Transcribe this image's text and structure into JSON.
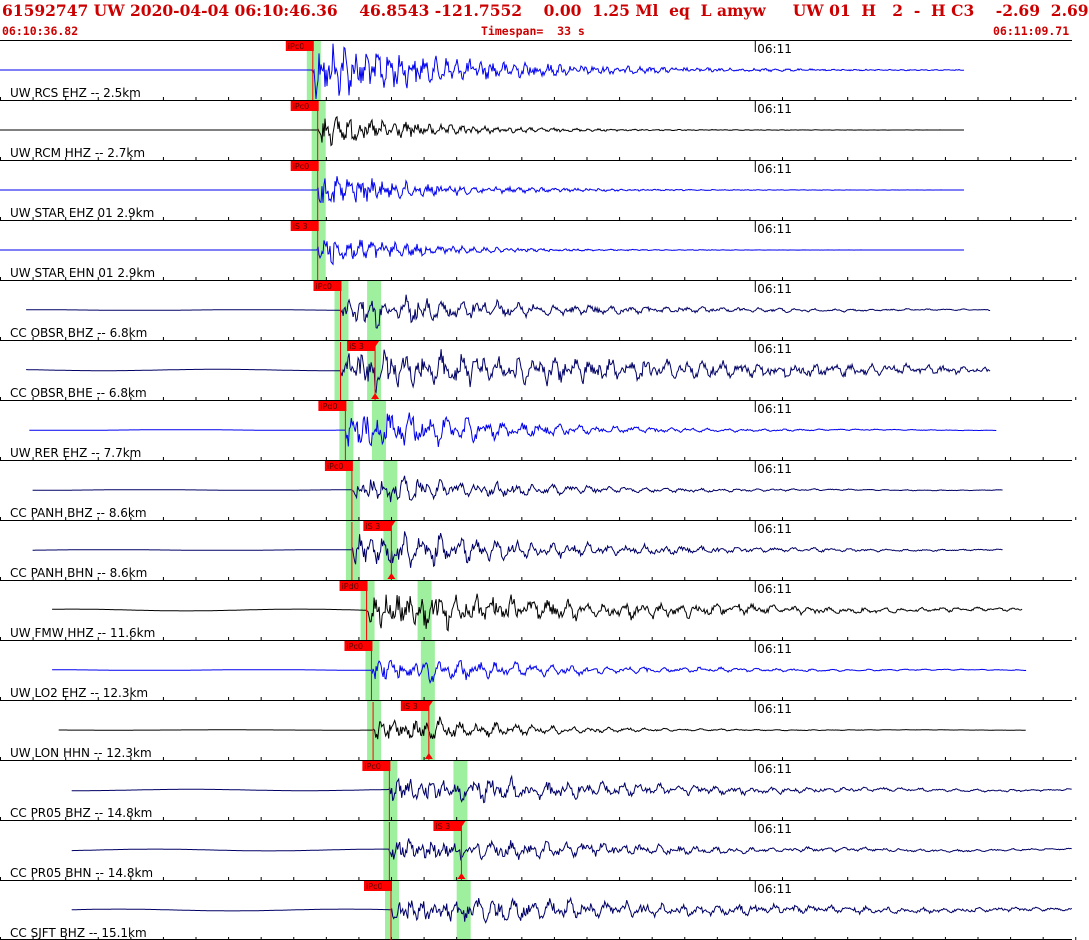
{
  "header": {
    "event_line": "61592747 UW 2020-04-04 06:10:46.36    46.8543 -121.7552    0.00  1.25 Ml  eq  L amyw     UW 01  H   2  -  H C3    -2.69  2.69",
    "start_time": "06:10:36.82",
    "timespan": "Timespan=  33 s",
    "end_time": "06:11:09.71"
  },
  "colors": {
    "header_text": "#cc0000",
    "pick_box": "#ff0000",
    "phase_band": "#9ef09e",
    "trace_blue": "#0000ee",
    "trace_black": "#000000",
    "trace_navy": "#000066"
  },
  "chart_data": {
    "type": "seismogram",
    "time_range_s": [
      0,
      32.9
    ],
    "tick_label": "06:11",
    "tick_time_s": 23.18,
    "traces": [
      {
        "label": "UW RCS EHZ -- 2.5km",
        "color": "blue",
        "trace_start": 0,
        "trace_end": 29.6,
        "p_pick": 9.6,
        "p_label": "iPc0",
        "s_pick": null,
        "s_label": "",
        "amp": 1.0,
        "decay": 0.22,
        "noise": 0.0
      },
      {
        "label": "UW RCM HHZ -- 2.7km",
        "color": "black",
        "trace_start": 0,
        "trace_end": 29.6,
        "p_pick": 9.75,
        "p_label": "iPc0",
        "s_pick": null,
        "s_label": "",
        "amp": 0.55,
        "decay": 0.3,
        "noise": 0.0
      },
      {
        "label": "UW STAR EHZ 01 2.9km",
        "color": "blue",
        "trace_start": 0,
        "trace_end": 29.6,
        "p_pick": 9.75,
        "p_label": "iPc0",
        "s_pick": null,
        "s_label": "",
        "amp": 0.6,
        "decay": 0.3,
        "noise": 0.0
      },
      {
        "label": "UW STAR EHN 01 2.9km",
        "color": "blue",
        "trace_start": 0,
        "trace_end": 29.6,
        "p_pick": 9.75,
        "p_label": "iS 3",
        "s_pick": null,
        "s_label": "",
        "amp": 0.55,
        "decay": 0.35,
        "noise": 0.0
      },
      {
        "label": "CC OBSR BHZ -- 6.8km",
        "color": "navy",
        "trace_start": 0.8,
        "trace_end": 30.4,
        "p_pick": 10.45,
        "p_label": "iPc0",
        "s_pick": 11.45,
        "s_label": "",
        "amp": 0.45,
        "decay": 0.18,
        "noise": 0.02
      },
      {
        "label": "CC OBSR BHE -- 6.8km",
        "color": "navy",
        "trace_start": 0.8,
        "trace_end": 30.4,
        "p_pick": 10.45,
        "p_label": "",
        "s_pick": 11.45,
        "s_label": "iS 3",
        "amp": 0.55,
        "decay": 0.09,
        "noise": 0.04
      },
      {
        "label": "UW RER EHZ -- 7.7km",
        "color": "blue",
        "trace_start": 0.9,
        "trace_end": 30.6,
        "p_pick": 10.6,
        "p_label": "iPd0",
        "s_pick": 11.6,
        "s_label": "",
        "amp": 0.6,
        "decay": 0.25,
        "noise": 0.02
      },
      {
        "label": "CC PANH BHZ -- 8.6km",
        "color": "navy",
        "trace_start": 1.0,
        "trace_end": 30.8,
        "p_pick": 10.8,
        "p_label": "iPc0",
        "s_pick": 11.95,
        "s_label": "",
        "amp": 0.4,
        "decay": 0.22,
        "noise": 0.02
      },
      {
        "label": "CC PANH BHN -- 8.6km",
        "color": "navy",
        "trace_start": 1.0,
        "trace_end": 30.8,
        "p_pick": 10.8,
        "p_label": "",
        "s_pick": 11.95,
        "s_label": "iS 3",
        "amp": 0.5,
        "decay": 0.18,
        "noise": 0.02
      },
      {
        "label": "UW FMW HHZ -- 11.6km",
        "color": "black",
        "trace_start": 1.6,
        "trace_end": 31.4,
        "p_pick": 11.25,
        "p_label": "iPd0",
        "s_pick": 13.0,
        "s_label": "",
        "amp": 0.55,
        "decay": 0.14,
        "noise": 0.05
      },
      {
        "label": "UW LO2 EHZ -- 12.3km",
        "color": "blue",
        "trace_start": 1.6,
        "trace_end": 31.5,
        "p_pick": 11.4,
        "p_label": "iPc0",
        "s_pick": 13.1,
        "s_label": "",
        "amp": 0.35,
        "decay": 0.2,
        "noise": 0.02
      },
      {
        "label": "UW LON HHN -- 12.3km",
        "color": "black",
        "trace_start": 1.8,
        "trace_end": 31.5,
        "p_pick": 11.45,
        "p_label": "",
        "s_pick": 13.1,
        "s_label": "iS 3",
        "amp": 0.4,
        "decay": 0.3,
        "noise": 0.01
      },
      {
        "label": "CC PR05 BHZ -- 14.8km",
        "color": "navy",
        "trace_start": 2.2,
        "trace_end": 32.9,
        "p_pick": 11.95,
        "p_label": "iPc0",
        "s_pick": 14.1,
        "s_label": "",
        "amp": 0.4,
        "decay": 0.15,
        "noise": 0.04
      },
      {
        "label": "CC PR05 BHN -- 14.8km",
        "color": "navy",
        "trace_start": 2.2,
        "trace_end": 32.9,
        "p_pick": 11.95,
        "p_label": "",
        "s_pick": 14.1,
        "s_label": "iS 3",
        "amp": 0.35,
        "decay": 0.15,
        "noise": 0.05
      },
      {
        "label": "CC SJFT BHZ -- 15.1km",
        "color": "navy",
        "trace_start": 2.2,
        "trace_end": 32.9,
        "p_pick": 12.0,
        "p_label": "iPc0",
        "s_pick": 14.2,
        "s_label": "",
        "amp": 0.4,
        "decay": 0.12,
        "noise": 0.05
      }
    ]
  }
}
